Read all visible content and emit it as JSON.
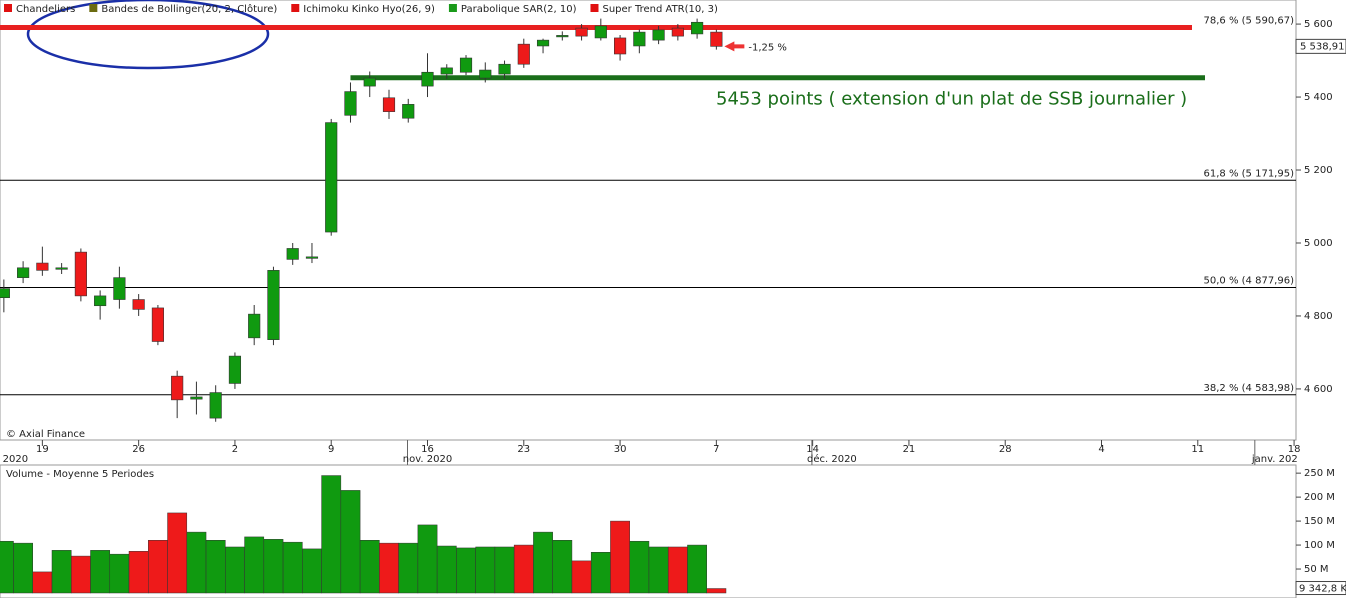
{
  "chart_data": [
    {
      "type": "candlestick",
      "legend": [
        {
          "name": "Chandeliers",
          "color": "#e01010"
        },
        {
          "name": "Bandes de Bollinger(20, 2, Clôture)",
          "color": "#6b6b10"
        },
        {
          "name": "Ichimoku Kinko Hyo(26, 9)",
          "color": "#e01010"
        },
        {
          "name": "Parabolique SAR(2, 10)",
          "color": "#1a9a1a"
        },
        {
          "name": "Super Trend ATR(10, 3)",
          "color": "#e01010"
        }
      ],
      "categories": [
        null,
        null,
        null,
        null,
        null,
        null,
        null,
        null,
        null,
        null,
        null,
        null,
        null,
        null,
        null,
        null,
        null,
        null,
        null,
        null,
        null,
        null,
        null,
        null,
        null,
        null,
        null,
        null,
        null,
        null,
        null,
        null,
        null,
        null,
        null,
        null,
        null,
        null
      ],
      "open": [
        4850,
        4905,
        4945,
        4928,
        4975,
        4828,
        4845,
        4845,
        4822,
        4635,
        4572,
        4520,
        4615,
        4740,
        4735,
        4955,
        4958,
        5030,
        5350,
        5430,
        5398,
        5342,
        5430,
        5463,
        5468,
        5452,
        5463,
        5545,
        5540,
        5565,
        5589,
        5562,
        5562,
        5540,
        5556,
        5589,
        5573,
        5578
      ],
      "high": [
        4900,
        4950,
        4990,
        4945,
        4985,
        4870,
        4935,
        4860,
        4830,
        4650,
        4620,
        4610,
        4700,
        4830,
        4935,
        5000,
        5000,
        5340,
        5440,
        5470,
        5420,
        5395,
        5520,
        5490,
        5515,
        5495,
        5500,
        5560,
        5560,
        5580,
        5600,
        5615,
        5570,
        5585,
        5595,
        5600,
        5615,
        5585
      ],
      "low": [
        4810,
        4890,
        4910,
        4915,
        4840,
        4790,
        4820,
        4800,
        4720,
        4520,
        4530,
        4510,
        4600,
        4720,
        4720,
        4940,
        4945,
        5020,
        5330,
        5400,
        5340,
        5330,
        5400,
        5450,
        5460,
        5440,
        5450,
        5480,
        5520,
        5555,
        5555,
        5555,
        5500,
        5520,
        5545,
        5555,
        5560,
        5530
      ],
      "close": [
        4875,
        4932,
        4925,
        4932,
        4855,
        4855,
        4905,
        4818,
        4730,
        4570,
        4578,
        4590,
        4690,
        4805,
        4925,
        4985,
        4962,
        5330,
        5415,
        5452,
        5360,
        5380,
        5468,
        5480,
        5507,
        5474,
        5490,
        5490,
        5556,
        5569,
        5567,
        5595,
        5518,
        5578,
        5584,
        5567,
        5605,
        5538.91
      ],
      "up_color": "#109a10",
      "down_color": "#ee1a1a",
      "xlim": [
        -0.2,
        67.1
      ],
      "xticks": [
        {
          "value": 2,
          "label": "19"
        },
        {
          "value": 7,
          "label": "26"
        },
        {
          "value": 12,
          "label": "2"
        },
        {
          "value": 17,
          "label": "9"
        },
        {
          "value": 22,
          "label": "16"
        },
        {
          "value": 27,
          "label": "23"
        },
        {
          "value": 32,
          "label": "30"
        },
        {
          "value": 37,
          "label": "7"
        },
        {
          "value": 42,
          "label": "14"
        },
        {
          "value": 47,
          "label": "21"
        },
        {
          "value": 52,
          "label": "28"
        },
        {
          "value": 57,
          "label": "4"
        },
        {
          "value": 62,
          "label": "11"
        },
        {
          "value": 67,
          "label": "18"
        }
      ],
      "month_ticks": [
        {
          "value": 0.6,
          "label": "2020"
        },
        {
          "value": 22,
          "label": "nov. 2020"
        },
        {
          "value": 43,
          "label": "déc. 2020"
        },
        {
          "value": 66,
          "label": "janv. 202"
        }
      ],
      "ylim": [
        4460,
        5666
      ],
      "yticks": [
        {
          "value": 5600,
          "label": "5 600"
        },
        {
          "value": 5400,
          "label": "5 400"
        },
        {
          "value": 5200,
          "label": "5 200"
        },
        {
          "value": 5000,
          "label": "5 000"
        },
        {
          "value": 4800,
          "label": "4 800"
        },
        {
          "value": 4600,
          "label": "4 600"
        }
      ],
      "last_price": {
        "value": 5538.91,
        "label": "5 538,91"
      },
      "levels": [
        {
          "value": 5590.67,
          "label": "78,6 % (5 590,67)",
          "color": "#e82020"
        },
        {
          "value": 5171.95,
          "label": "61,8 % (5 171,95)",
          "color": "#000000"
        },
        {
          "value": 4877.96,
          "label": "50,0 % (4 877,96)",
          "color": "#000000"
        },
        {
          "value": 4583.98,
          "label": "38,2 % (4 583,98)",
          "color": "#000000"
        }
      ],
      "target": {
        "value": 5453,
        "label": "5453 points ( extension d'un plat de SSB journalier )",
        "color": "#1a6e1a"
      },
      "change_label": "-1,25 %",
      "copyright": "© Axial Finance"
    },
    {
      "type": "bar",
      "title": "Volume  - Moyenne 5 Periodes",
      "values": [
        108,
        104,
        44,
        89,
        77,
        89,
        81,
        87,
        110,
        167,
        127,
        110,
        96,
        117,
        112,
        106,
        92,
        245,
        214,
        110,
        104,
        104,
        142,
        98,
        94,
        96,
        96,
        100,
        127,
        110,
        67,
        85,
        150,
        108,
        96,
        96,
        100,
        9.3428
      ],
      "ylim": [
        0,
        267
      ],
      "yticks": [
        {
          "value": 250,
          "label": "250 M"
        },
        {
          "value": 200,
          "label": "200 M"
        },
        {
          "value": 150,
          "label": "150 M"
        },
        {
          "value": 100,
          "label": "100 M"
        },
        {
          "value": 50,
          "label": "50 M"
        }
      ],
      "last_label": {
        "value": 9.3428,
        "label": "9 342,8 K"
      }
    }
  ]
}
